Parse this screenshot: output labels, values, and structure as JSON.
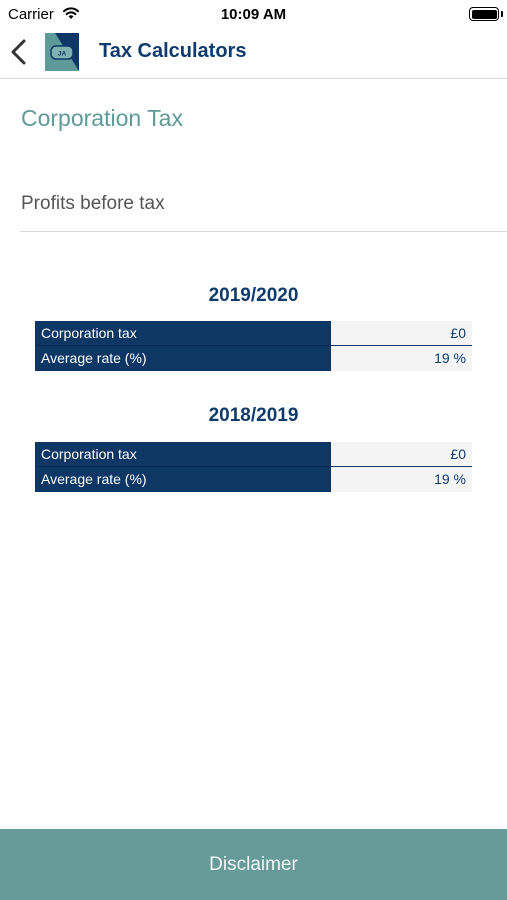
{
  "status_bar": {
    "carrier": "Carrier",
    "time": "10:09 AM",
    "icons": [
      "wifi-icon",
      "battery-icon"
    ]
  },
  "nav": {
    "back_icon": "chevron-left-icon",
    "logo_icon": "app-logo-icon",
    "logo_text": "JA",
    "title": "Tax Calculators"
  },
  "page": {
    "heading": "Corporation Tax",
    "profits_input": {
      "placeholder": "Profits before tax",
      "value": ""
    }
  },
  "years": [
    {
      "label": "2019/2020",
      "rows": [
        {
          "label": "Corporation tax",
          "value": "£0"
        },
        {
          "label": "Average rate (%)",
          "value": "19 %"
        }
      ]
    },
    {
      "label": "2018/2019",
      "rows": [
        {
          "label": "Corporation tax",
          "value": "£0"
        },
        {
          "label": "Average rate (%)",
          "value": "19 %"
        }
      ]
    }
  ],
  "footer": {
    "disclaimer_label": "Disclaimer"
  },
  "colors": {
    "navy": "#0f3766",
    "teal": "#669b9a",
    "heading_teal": "#5e9a98",
    "value_bg": "#f4f4f4"
  }
}
